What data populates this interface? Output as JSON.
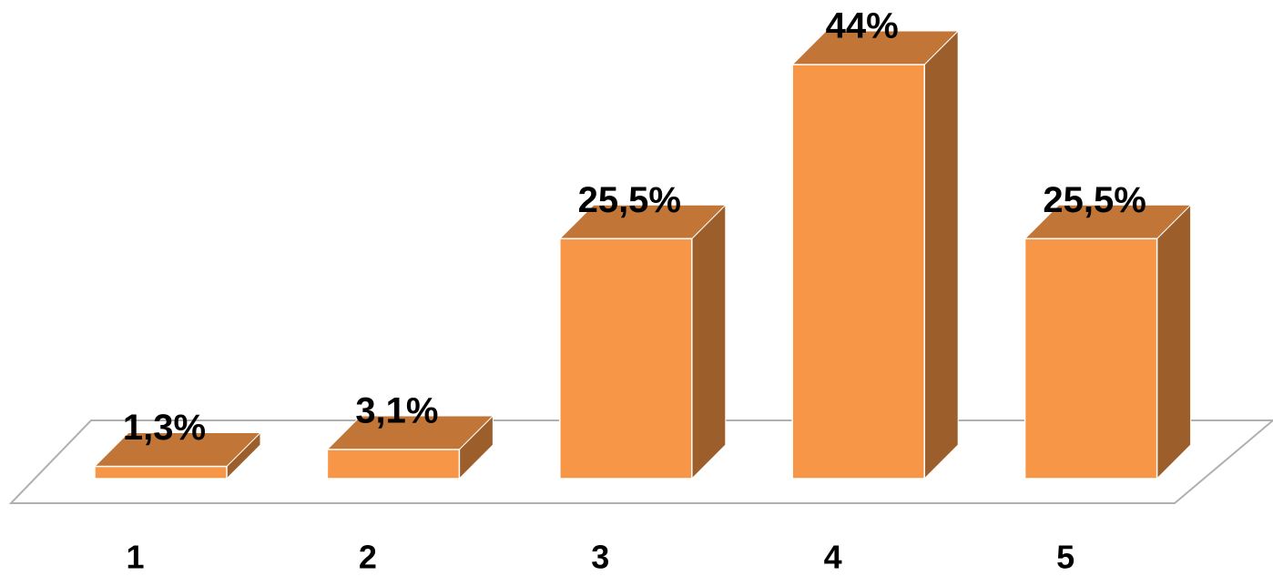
{
  "chart_data": {
    "type": "bar3d",
    "categories": [
      "1",
      "2",
      "3",
      "4",
      "5"
    ],
    "values": [
      1.3,
      3.1,
      25.5,
      44,
      25.5
    ],
    "value_labels": [
      "1,3%",
      "3,1%",
      "25,5%",
      "44%",
      "25,5%"
    ],
    "color": "#f79646"
  }
}
